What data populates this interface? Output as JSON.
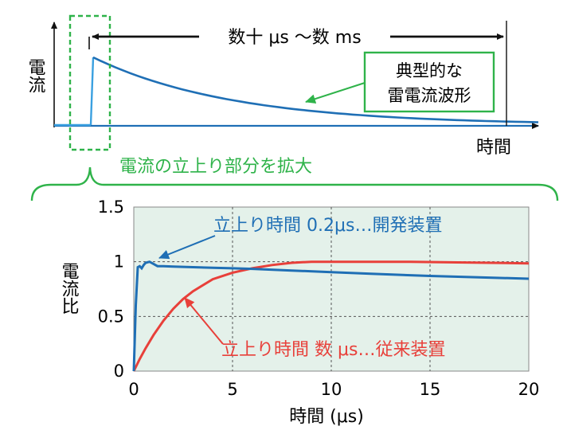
{
  "top_chart": {
    "ylabel": "電流",
    "xlabel": "時間",
    "span_label": "数十 μs ～数 ms",
    "callout_line1": "典型的な",
    "callout_line2": "雷電流波形",
    "zoom_label": "電流の立上り部分を拡大"
  },
  "chart_data": {
    "type": "line",
    "title": "",
    "xlabel": "時間 (μs)",
    "ylabel": "電流比",
    "xlim": [
      0,
      20
    ],
    "ylim": [
      0,
      1.5
    ],
    "x_ticks": [
      "0",
      "5",
      "10",
      "15",
      "20"
    ],
    "y_ticks": [
      "0",
      "0.5",
      "1",
      "1.5"
    ],
    "grid": true,
    "series": [
      {
        "name": "立上り時間 0.2μs…開発装置",
        "color": "#1f6fb5",
        "x": [
          0,
          0.1,
          0.2,
          0.3,
          0.4,
          0.5,
          0.6,
          0.8,
          1.0,
          1.2,
          1.5,
          2,
          3,
          4,
          5,
          6,
          8,
          10,
          12,
          15,
          18,
          20
        ],
        "y": [
          0,
          0.6,
          0.95,
          0.96,
          0.94,
          0.97,
          0.99,
          1.0,
          0.98,
          0.96,
          0.96,
          0.955,
          0.95,
          0.945,
          0.94,
          0.935,
          0.92,
          0.905,
          0.89,
          0.87,
          0.855,
          0.845
        ]
      },
      {
        "name": "立上り時間 数 μs…従来装置",
        "color": "#e8403a",
        "x": [
          0,
          0.3,
          0.6,
          1,
          1.5,
          2,
          2.5,
          3,
          4,
          5,
          6,
          7,
          8,
          9,
          10,
          12,
          14,
          16,
          18,
          20
        ],
        "y": [
          0,
          0.11,
          0.21,
          0.33,
          0.46,
          0.57,
          0.66,
          0.73,
          0.84,
          0.9,
          0.94,
          0.97,
          0.99,
          1.0,
          1.0,
          1.0,
          1.0,
          0.995,
          0.99,
          0.985
        ]
      }
    ]
  }
}
